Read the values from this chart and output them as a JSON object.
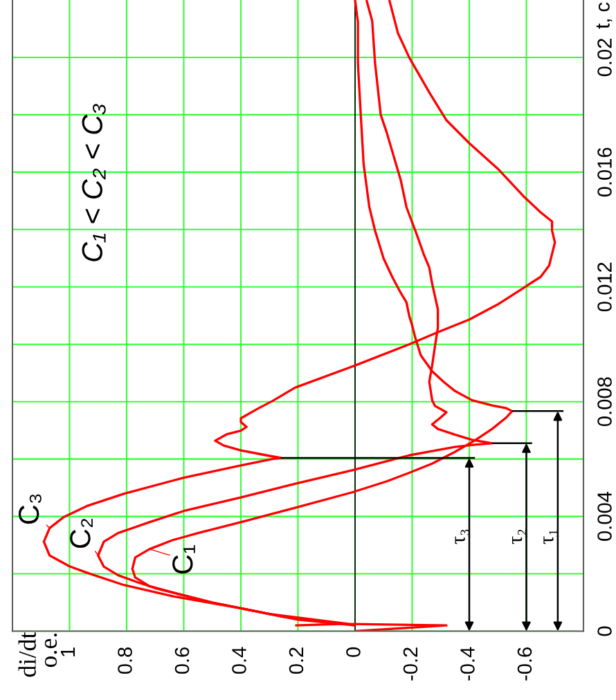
{
  "chart_data": {
    "type": "line",
    "ylabel": "t, с",
    "xlim": [
      1.2,
      -0.8
    ],
    "ylim": [
      0,
      0.022
    ],
    "xticks": [
      1,
      0.8,
      0.6,
      0.4,
      0.2,
      0,
      -0.2,
      -0.4,
      -0.6
    ],
    "yticks": [
      0,
      {
        "value": 0.002,
        "label": null
      },
      0.004,
      {
        "value": 0.006,
        "label": null
      },
      0.008,
      {
        "value": 0.01,
        "label": null
      },
      0.012,
      {
        "value": 0.014,
        "label": null
      },
      0.016,
      {
        "value": 0.018,
        "label": null
      },
      0.02
    ],
    "grid": true,
    "ref_lines": [
      {
        "axis": "x",
        "value": 0,
        "color": "#000000"
      }
    ],
    "series": [
      {
        "name": "C₁",
        "color": "#ff0000",
        "x": [
          0,
          -0.32,
          0.02,
          0.3,
          0.5,
          0.62,
          0.72,
          0.77,
          0.78,
          0.77,
          0.72,
          0.64,
          0.55,
          0.4,
          0.21,
          0.01,
          -0.11,
          -0.19,
          -0.27,
          -0.35,
          -0.42,
          -0.48,
          -0.53,
          -0.55,
          -0.53,
          -0.48,
          -0.41,
          -0.35,
          -0.31,
          -0.27,
          -0.23,
          -0.22,
          -0.21,
          -0.2,
          -0.19,
          -0.18,
          -0.16,
          -0.13,
          -0.1,
          -0.07,
          -0.05,
          -0.03,
          -0.02,
          -0.01,
          -0.01,
          0
        ],
        "values": [
          0,
          0.0002,
          0.00025,
          0.0006,
          0.001,
          0.0013,
          0.00157,
          0.00187,
          0.00217,
          0.00257,
          0.00286,
          0.00317,
          0.00342,
          0.0038,
          0.0043,
          0.00484,
          0.00522,
          0.00552,
          0.00584,
          0.00625,
          0.00665,
          0.00705,
          0.00745,
          0.00767,
          0.00777,
          0.00787,
          0.00805,
          0.00837,
          0.00869,
          0.00906,
          0.00962,
          0.00994,
          0.01026,
          0.01066,
          0.01098,
          0.01146,
          0.01179,
          0.01235,
          0.01299,
          0.01396,
          0.01478,
          0.01628,
          0.01799,
          0.0198,
          0.02123,
          0.022
        ]
      },
      {
        "name": "C₂",
        "color": "#ff0000",
        "x": [
          0.21,
          0.05,
          0.25,
          0.5,
          0.7,
          0.76,
          0.83,
          0.88,
          0.9,
          0.88,
          0.83,
          0.72,
          0.6,
          0.4,
          0.21,
          0.01,
          -0.11,
          -0.19,
          -0.27,
          -0.35,
          -0.42,
          -0.48,
          -0.41,
          -0.35,
          -0.29,
          -0.27,
          -0.3,
          -0.32,
          -0.28,
          -0.27,
          -0.26,
          -0.27,
          -0.28,
          -0.29,
          -0.29,
          -0.27,
          -0.26,
          -0.24,
          -0.22,
          -0.18,
          -0.16,
          -0.11,
          -0.09,
          -0.07,
          -0.06,
          -0.04
        ],
        "values": [
          0.0002,
          0.00025,
          0.0005,
          0.001,
          0.0015,
          0.0017,
          0.00195,
          0.00225,
          0.00264,
          0.00312,
          0.00342,
          0.0038,
          0.00419,
          0.00466,
          0.00514,
          0.00561,
          0.00592,
          0.00613,
          0.00628,
          0.00642,
          0.0065,
          0.00655,
          0.00667,
          0.00685,
          0.00705,
          0.00721,
          0.00745,
          0.00763,
          0.00785,
          0.00805,
          0.0087,
          0.00926,
          0.00994,
          0.01058,
          0.01122,
          0.01211,
          0.01267,
          0.01315,
          0.01372,
          0.01478,
          0.01572,
          0.01741,
          0.01799,
          0.0198,
          0.02127,
          0.022
        ]
      },
      {
        "name": "C₃",
        "color": "#ff0000",
        "x": [
          0,
          0.2,
          0.4,
          0.64,
          0.81,
          0.94,
          1.0,
          1.07,
          1.09,
          1.07,
          1.02,
          0.94,
          0.81,
          0.6,
          0.4,
          0.29,
          0.26,
          0.31,
          0.4,
          0.46,
          0.49,
          0.45,
          0.4,
          0.38,
          0.4,
          0.4,
          0.34,
          0.29,
          0.21,
          0.0,
          -0.19,
          -0.29,
          -0.4,
          -0.5,
          -0.6,
          -0.65,
          -0.68,
          -0.69,
          -0.7,
          -0.69,
          -0.69,
          -0.65,
          -0.59,
          -0.5,
          -0.4,
          -0.32,
          -0.26,
          -0.19,
          -0.15,
          -0.12
        ],
        "values": [
          0.0002,
          0.0004,
          0.0008,
          0.00122,
          0.00161,
          0.00204,
          0.00226,
          0.00264,
          0.00312,
          0.00359,
          0.00398,
          0.00436,
          0.00479,
          0.00535,
          0.00578,
          0.006,
          0.00604,
          0.00613,
          0.0063,
          0.00647,
          0.00664,
          0.00686,
          0.00699,
          0.00712,
          0.00729,
          0.00742,
          0.00776,
          0.00802,
          0.00849,
          0.00926,
          0.01,
          0.01042,
          0.01086,
          0.01139,
          0.01203,
          0.01235,
          0.01275,
          0.01315,
          0.01355,
          0.01396,
          0.01428,
          0.0146,
          0.01516,
          0.01612,
          0.01701,
          0.01781,
          0.01878,
          0.01999,
          0.02085,
          0.022
        ]
      },
      {
        "color": "#000000",
        "x": [
          -0.55,
          -0.73
        ],
        "values": [
          0.00767,
          0.00767
        ]
      },
      {
        "color": "#000000",
        "x": [
          -0.48,
          -0.62
        ],
        "values": [
          0.00655,
          0.00655
        ]
      },
      {
        "color": "#000000",
        "x": [
          0.26,
          -0.42
        ],
        "values": [
          0.00604,
          0.00604
        ]
      }
    ],
    "annotations": [
      "C₁ < C₂ < C₃",
      "di/dt\nо.е.",
      {
        "text": "τ₁",
        "x": -0.71,
        "y": 0.00767
      },
      {
        "text": "τ₂",
        "x": -0.6,
        "y": 0.00655
      },
      {
        "text": "τ₃",
        "x": -0.4,
        "y": 0.00604
      }
    ]
  }
}
